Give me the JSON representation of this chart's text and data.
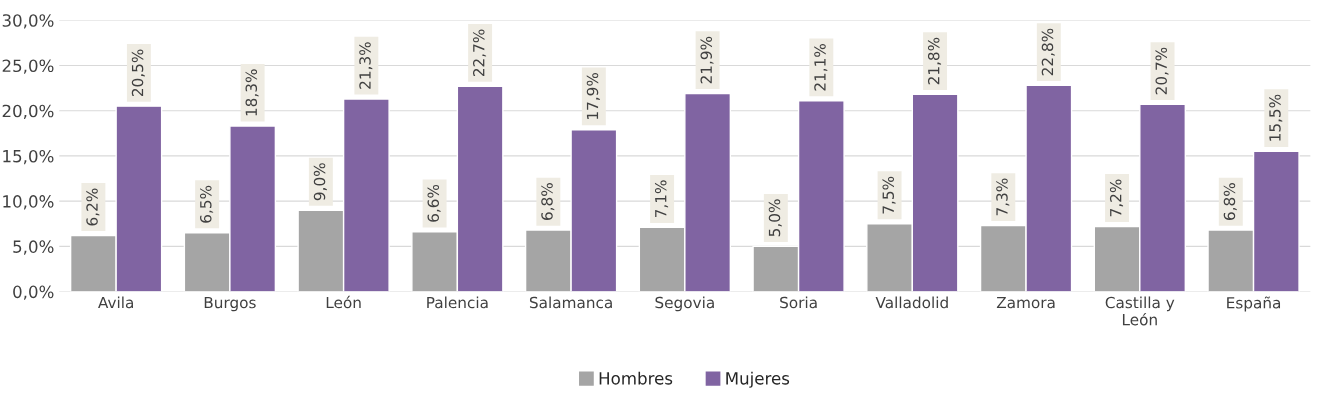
{
  "chart_data": {
    "type": "bar",
    "categories": [
      "Avila",
      "Burgos",
      "León",
      "Palencia",
      "Salamanca",
      "Segovia",
      "Soria",
      "Valladolid",
      "Zamora",
      "Castilla y\nLeón",
      "España"
    ],
    "series": [
      {
        "name": "Hombres",
        "color": "#a5a5a5",
        "values": [
          6.2,
          6.5,
          9.0,
          6.6,
          6.8,
          7.1,
          5.0,
          7.5,
          7.3,
          7.2,
          6.8
        ],
        "value_labels": [
          "6,2%",
          "6,5%",
          "9,0%",
          "6,6%",
          "6,8%",
          "7,1%",
          "5,0%",
          "7,5%",
          "7,3%",
          "7,2%",
          "6,8%"
        ]
      },
      {
        "name": "Mujeres",
        "color": "#8064a2",
        "values": [
          20.5,
          18.3,
          21.3,
          22.7,
          17.9,
          21.9,
          21.1,
          21.8,
          22.8,
          20.7,
          15.5
        ],
        "value_labels": [
          "20,5%",
          "18,3%",
          "21,3%",
          "22,7%",
          "17,9%",
          "21,9%",
          "21,1%",
          "21,8%",
          "22,8%",
          "20,7%",
          "15,5%"
        ]
      }
    ],
    "ylim": [
      0,
      30
    ],
    "yticks": [
      {
        "value": 0,
        "label": "0,0%"
      },
      {
        "value": 5,
        "label": "5,0%"
      },
      {
        "value": 10,
        "label": "10,0%"
      },
      {
        "value": 15,
        "label": "15,0%"
      },
      {
        "value": 20,
        "label": "20,0%"
      },
      {
        "value": 25,
        "label": "25,0%"
      },
      {
        "value": 30,
        "label": "30,0%"
      }
    ],
    "grid": "y",
    "legend": "bottom"
  }
}
